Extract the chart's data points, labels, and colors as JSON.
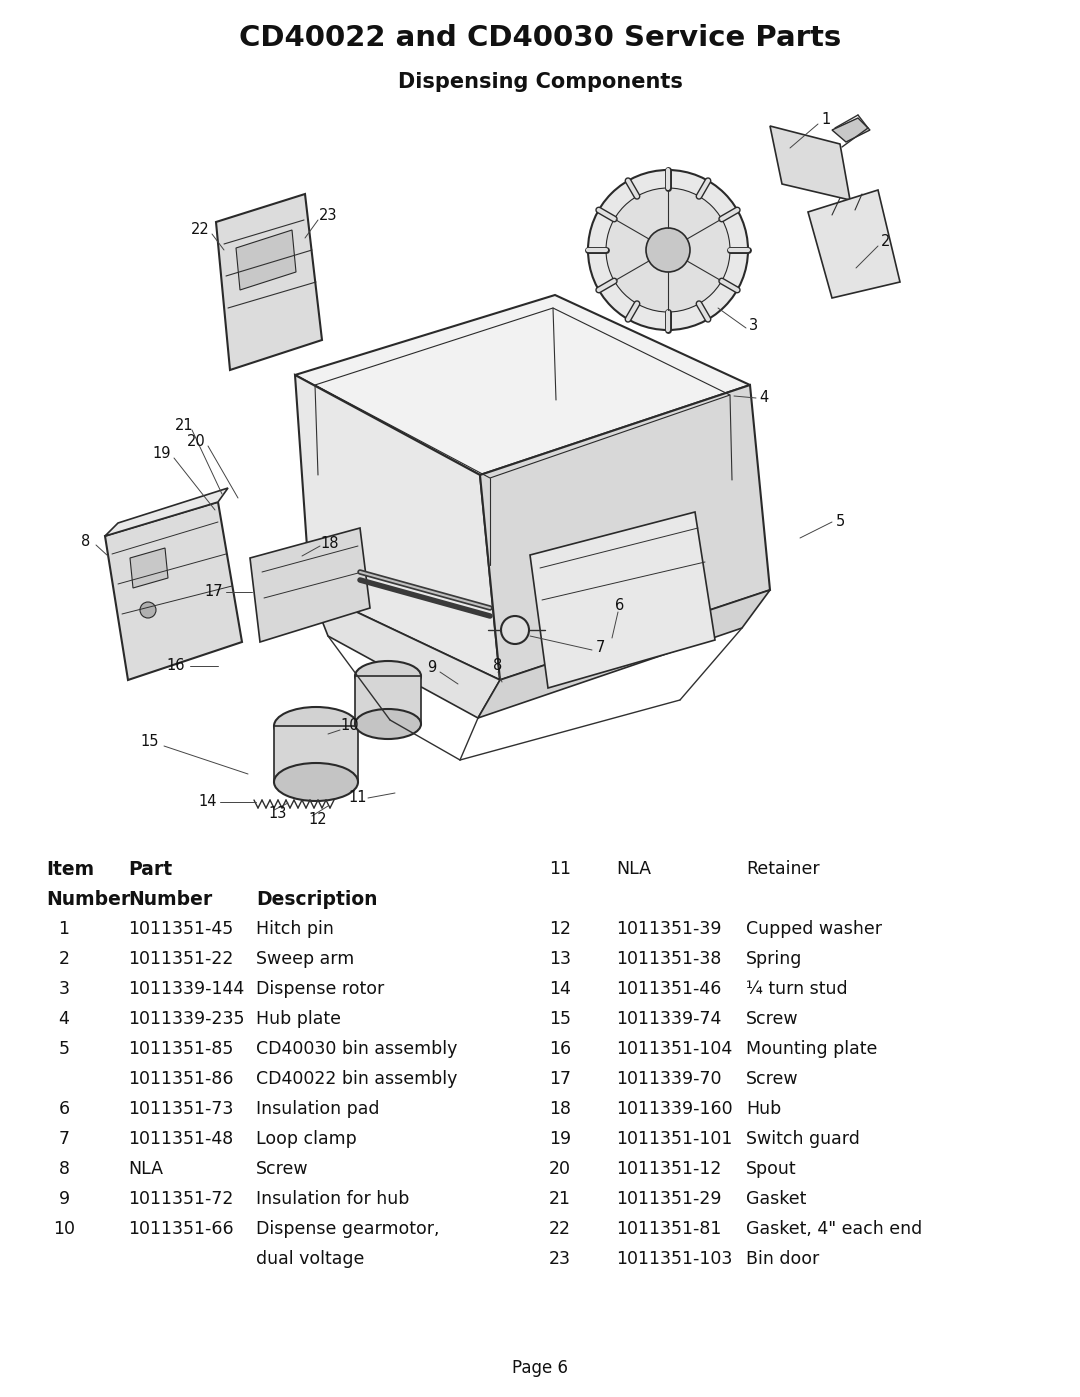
{
  "title": "CD40022 and CD40030 Service Parts",
  "subtitle": "Dispensing Components",
  "page": "Page 6",
  "background_color": "#ffffff",
  "left_items": [
    {
      "num": "1",
      "part": "1011351-45",
      "desc": "Hitch pin"
    },
    {
      "num": "2",
      "part": "1011351-22",
      "desc": "Sweep arm"
    },
    {
      "num": "3",
      "part": "1011339-144",
      "desc": "Dispense rotor"
    },
    {
      "num": "4",
      "part": "1011339-235",
      "desc": "Hub plate"
    },
    {
      "num": "5",
      "part": "1011351-85",
      "desc": "CD40030 bin assembly"
    },
    {
      "num": "",
      "part": "1011351-86",
      "desc": "CD40022 bin assembly"
    },
    {
      "num": "6",
      "part": "1011351-73",
      "desc": "Insulation pad"
    },
    {
      "num": "7",
      "part": "1011351-48",
      "desc": "Loop clamp"
    },
    {
      "num": "8",
      "part": "NLA",
      "desc": "Screw"
    },
    {
      "num": "9",
      "part": "1011351-72",
      "desc": "Insulation for hub"
    },
    {
      "num": "10",
      "part": "1011351-66",
      "desc": "Dispense gearmotor,"
    },
    {
      "num": "",
      "part": "",
      "desc": "dual voltage"
    }
  ],
  "right_items": [
    {
      "num": "11",
      "part": "NLA",
      "desc": "Retainer"
    },
    {
      "num": "12",
      "part": "1011351-39",
      "desc": "Cupped washer"
    },
    {
      "num": "13",
      "part": "1011351-38",
      "desc": "Spring"
    },
    {
      "num": "14",
      "part": "1011351-46",
      "desc": "¼ turn stud"
    },
    {
      "num": "15",
      "part": "1011339-74",
      "desc": "Screw"
    },
    {
      "num": "16",
      "part": "1011351-104",
      "desc": "Mounting plate"
    },
    {
      "num": "17",
      "part": "1011339-70",
      "desc": "Screw"
    },
    {
      "num": "18",
      "part": "1011339-160",
      "desc": "Hub"
    },
    {
      "num": "19",
      "part": "1011351-101",
      "desc": "Switch guard"
    },
    {
      "num": "20",
      "part": "1011351-12",
      "desc": "Spout"
    },
    {
      "num": "21",
      "part": "1011351-29",
      "desc": "Gasket"
    },
    {
      "num": "22",
      "part": "1011351-81",
      "desc": "Gasket, 4\" each end"
    },
    {
      "num": "23",
      "part": "1011351-103",
      "desc": "Bin door"
    }
  ]
}
